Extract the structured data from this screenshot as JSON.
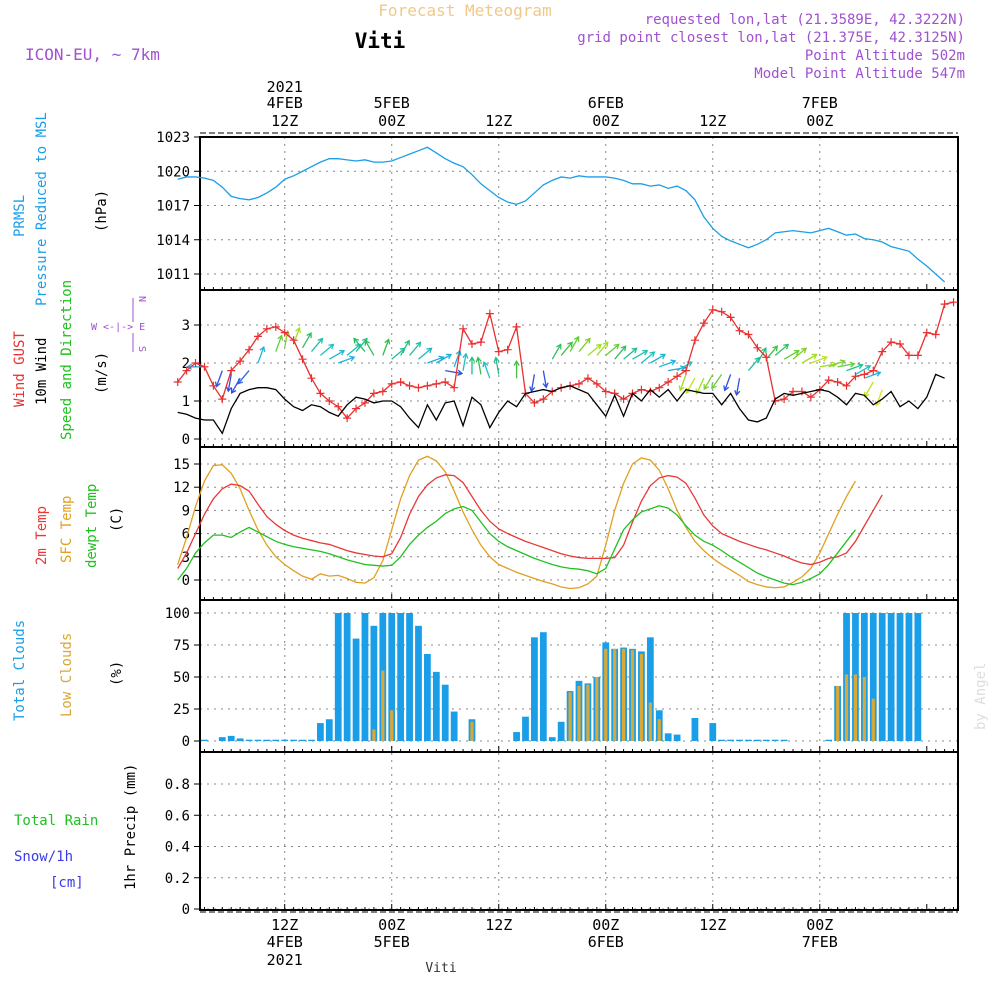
{
  "header": {
    "title": "Forecast Meteogram",
    "station": "Viti",
    "model": "ICON-EU, ~ 7km",
    "requested": "requested lon,lat (21.3589E, 42.3222N)",
    "gridpoint": "grid point closest lon,lat (21.375E, 42.3125N)",
    "point_alt": "Point Altitude 502m",
    "model_alt": "Model Point Altitude 547m",
    "watermark": "by Angel",
    "footer_station": "Viti"
  },
  "colors": {
    "pressure": "#1a9ee8",
    "gust": "#e83030",
    "wind": "#000000",
    "t2m": "#e83838",
    "sfc": "#e0a020",
    "dewpt": "#20c020",
    "total_cloud": "#1a9ee8",
    "low_cloud": "#d8a838",
    "rain": "#20c020",
    "snow": "#3a3ae8",
    "title": "#f0c88a",
    "purple": "#a050d0"
  },
  "time_axis": {
    "top_ticks": [
      {
        "hour": 12,
        "l1": "2021",
        "l2": "4FEB",
        "l3": "12Z"
      },
      {
        "hour": 24,
        "l1": "",
        "l2": "5FEB",
        "l3": "00Z"
      },
      {
        "hour": 36,
        "l1": "",
        "l2": "",
        "l3": "12Z"
      },
      {
        "hour": 48,
        "l1": "",
        "l2": "6FEB",
        "l3": "00Z"
      },
      {
        "hour": 60,
        "l1": "",
        "l2": "",
        "l3": "12Z"
      },
      {
        "hour": 72,
        "l1": "",
        "l2": "7FEB",
        "l3": "00Z"
      }
    ],
    "bottom_ticks": [
      {
        "hour": 12,
        "l1": "12Z",
        "l2": "4FEB",
        "l3": "2021"
      },
      {
        "hour": 24,
        "l1": "00Z",
        "l2": "5FEB",
        "l3": ""
      },
      {
        "hour": 36,
        "l1": "12Z",
        "l2": "",
        "l3": ""
      },
      {
        "hour": 48,
        "l1": "00Z",
        "l2": "6FEB",
        "l3": ""
      },
      {
        "hour": 60,
        "l1": "12Z",
        "l2": "",
        "l3": ""
      },
      {
        "hour": 72,
        "l1": "00Z",
        "l2": "7FEB",
        "l3": ""
      }
    ]
  },
  "panels": {
    "pressure": {
      "label1": "PRMSL",
      "label2": "Pressure Reduced to MSL",
      "unit": "(hPa)",
      "ticks": [
        "1011",
        "1014",
        "1017",
        "1020",
        "1023"
      ]
    },
    "wind": {
      "label_gust": "Wind GUST",
      "label_wind": "10m Wind",
      "label_dir": "Speed and Direction",
      "unit": "(m/s)",
      "ticks": [
        "0",
        "1",
        "2",
        "3"
      ],
      "compass_n": "N",
      "compass_s": "S",
      "compass_w": "W",
      "compass_e": "E",
      "compass_row": "W <-|-> E"
    },
    "temp": {
      "label_t2m": "2m Temp",
      "label_sfc": "SFC Temp",
      "label_dew": "dewpt Temp",
      "unit": "(C)",
      "ticks": [
        "0",
        "3",
        "6",
        "9",
        "12",
        "15"
      ]
    },
    "cloud": {
      "label_total": "Total Clouds",
      "label_low": "Low Clouds",
      "unit": "(%)",
      "ticks": [
        "0",
        "25",
        "50",
        "75",
        "100"
      ]
    },
    "precip": {
      "label_rain": "Total  Rain",
      "label_snow": "Snow/1h",
      "label_cm": "[cm]",
      "unit": "1hr Precip (mm)",
      "ticks": [
        "0",
        "0.2",
        "0.4",
        "0.6",
        "0.8"
      ]
    }
  },
  "chart_data": [
    {
      "type": "line",
      "name": "PRMSL",
      "ylim": [
        1010,
        1023.5
      ],
      "x_hours_start": 0,
      "x_hours_step": 1,
      "values": [
        1019.3,
        1019.5,
        1019.5,
        1019.4,
        1019.2,
        1018.6,
        1017.8,
        1017.6,
        1017.5,
        1017.7,
        1018.1,
        1018.6,
        1019.3,
        1019.6,
        1020.0,
        1020.4,
        1020.8,
        1021.1,
        1021.1,
        1021.0,
        1020.9,
        1021.0,
        1020.8,
        1020.8,
        1020.9,
        1021.2,
        1021.5,
        1021.8,
        1022.1,
        1021.6,
        1021.1,
        1020.7,
        1020.4,
        1019.7,
        1018.9,
        1018.3,
        1017.7,
        1017.3,
        1017.1,
        1017.4,
        1018.1,
        1018.8,
        1019.2,
        1019.5,
        1019.4,
        1019.6,
        1019.5,
        1019.5,
        1019.5,
        1019.4,
        1019.2,
        1018.9,
        1018.9,
        1018.7,
        1018.8,
        1018.5,
        1018.7,
        1018.3,
        1017.5,
        1016.0,
        1015.0,
        1014.3,
        1013.9,
        1013.6,
        1013.3,
        1013.6,
        1014.0,
        1014.6,
        1014.7,
        1014.8,
        1014.7,
        1014.6,
        1014.8,
        1015.0,
        1014.7,
        1014.4,
        1014.5,
        1014.1,
        1014.0,
        1013.8,
        1013.4,
        1013.2,
        1013.0,
        1012.3,
        1011.7,
        1011.0,
        1010.3
      ]
    },
    {
      "type": "line",
      "name": "Wind GUST",
      "ylim": [
        -0.1,
        3.9
      ],
      "x_hours_start": 0,
      "x_hours_step": 1,
      "values": [
        1.5,
        1.8,
        2.0,
        1.9,
        1.4,
        1.05,
        1.8,
        2.05,
        2.35,
        2.7,
        2.9,
        2.95,
        2.8,
        2.6,
        2.1,
        1.6,
        1.2,
        1.0,
        0.85,
        0.55,
        0.8,
        0.95,
        1.2,
        1.25,
        1.45,
        1.5,
        1.4,
        1.35,
        1.4,
        1.45,
        1.5,
        1.35,
        2.9,
        2.5,
        2.55,
        3.3,
        2.3,
        2.35,
        2.95,
        1.2,
        0.95,
        1.05,
        1.25,
        1.35,
        1.4,
        1.45,
        1.6,
        1.45,
        1.25,
        1.2,
        1.05,
        1.2,
        1.3,
        1.25,
        1.35,
        1.5,
        1.65,
        1.8,
        2.6,
        3.05,
        3.4,
        3.35,
        3.2,
        2.85,
        2.75,
        2.4,
        2.15,
        1.0,
        1.05,
        1.25,
        1.25,
        1.1,
        1.3,
        1.55,
        1.5,
        1.4,
        1.65,
        1.7,
        1.8,
        2.3,
        2.55,
        2.5,
        2.2,
        2.2,
        2.8,
        2.75,
        3.55,
        3.6
      ]
    },
    {
      "type": "line",
      "name": "10m Wind",
      "ylim": [
        -0.1,
        3.9
      ],
      "x_hours_start": 0,
      "x_hours_step": 1,
      "values": [
        0.7,
        0.65,
        0.55,
        0.5,
        0.5,
        0.15,
        0.8,
        1.2,
        1.3,
        1.35,
        1.35,
        1.3,
        1.05,
        0.85,
        0.75,
        0.9,
        0.85,
        0.7,
        0.6,
        0.9,
        1.1,
        1.05,
        0.95,
        1.0,
        1.0,
        0.85,
        0.55,
        0.3,
        0.9,
        0.5,
        0.95,
        1.0,
        0.35,
        1.1,
        0.9,
        0.3,
        0.7,
        1.0,
        0.85,
        1.2,
        1.25,
        1.3,
        1.25,
        1.35,
        1.4,
        1.3,
        1.2,
        0.9,
        0.6,
        1.15,
        0.6,
        1.2,
        1.0,
        1.3,
        1.1,
        1.3,
        1.0,
        1.3,
        1.25,
        1.2,
        1.2,
        0.9,
        1.2,
        0.8,
        0.5,
        0.45,
        0.55,
        1.05,
        1.2,
        1.15,
        1.2,
        1.25,
        1.3,
        1.25,
        1.1,
        0.9,
        1.2,
        1.15,
        0.9,
        1.05,
        1.25,
        0.85,
        1.0,
        0.8,
        1.1,
        1.7,
        1.6
      ]
    },
    {
      "type": "line",
      "name": "2m Temp",
      "ylim": [
        -1.5,
        17
      ],
      "x_hours_start": 0,
      "x_hours_step": 1,
      "values": [
        1.5,
        3.5,
        6.0,
        8.5,
        10.5,
        11.8,
        12.4,
        12.2,
        11.5,
        9.8,
        8.2,
        7.2,
        6.4,
        5.8,
        5.4,
        5.1,
        4.8,
        4.6,
        4.2,
        3.8,
        3.5,
        3.3,
        3.1,
        3.0,
        3.4,
        5.5,
        8.5,
        10.8,
        12.3,
        13.2,
        13.6,
        13.5,
        12.6,
        10.8,
        9.0,
        7.6,
        6.6,
        6.0,
        5.5,
        5.0,
        4.6,
        4.2,
        3.8,
        3.4,
        3.1,
        2.9,
        2.8,
        2.8,
        2.8,
        2.9,
        4.5,
        7.5,
        10.2,
        12.2,
        13.2,
        13.5,
        13.3,
        12.5,
        10.6,
        8.4,
        7.0,
        6.0,
        5.5,
        5.0,
        4.6,
        4.2,
        3.9,
        3.5,
        3.1,
        2.6,
        2.2,
        2.0,
        2.3,
        2.8,
        3.0,
        3.5,
        5.0,
        7.0,
        9.0,
        11.0
      ]
    },
    {
      "type": "line",
      "name": "SFC Temp",
      "ylim": [
        -1.5,
        17
      ],
      "x_hours_start": 0,
      "x_hours_step": 1,
      "values": [
        2.0,
        5.5,
        9.5,
        12.8,
        14.8,
        14.9,
        13.8,
        11.8,
        9.0,
        6.5,
        4.5,
        3.0,
        2.0,
        1.2,
        0.5,
        0.1,
        0.8,
        0.5,
        0.6,
        0.2,
        -0.3,
        -0.4,
        0.3,
        2.5,
        6.5,
        10.5,
        13.5,
        15.5,
        16.0,
        15.4,
        14.0,
        11.5,
        8.8,
        6.5,
        4.5,
        3.0,
        2.0,
        1.5,
        1.0,
        0.6,
        0.2,
        -0.2,
        -0.5,
        -0.9,
        -1.1,
        -1.0,
        -0.5,
        0.5,
        4.5,
        9.0,
        12.5,
        15.0,
        15.8,
        15.5,
        14.2,
        11.8,
        9.0,
        6.8,
        5.0,
        3.8,
        2.8,
        2.0,
        1.3,
        0.6,
        -0.2,
        -0.6,
        -0.9,
        -1.0,
        -0.9,
        -0.3,
        0.4,
        1.5,
        3.5,
        6.0,
        8.5,
        10.8,
        12.8
      ]
    },
    {
      "type": "line",
      "name": "dewpt Temp",
      "ylim": [
        -1.5,
        17
      ],
      "x_hours_start": 0,
      "x_hours_step": 1,
      "values": [
        0.0,
        1.5,
        3.5,
        4.8,
        5.8,
        5.8,
        5.5,
        6.2,
        6.8,
        6.2,
        5.6,
        5.0,
        4.6,
        4.3,
        4.1,
        3.9,
        3.7,
        3.4,
        3.0,
        2.6,
        2.3,
        2.0,
        1.9,
        1.8,
        1.9,
        3.0,
        4.6,
        5.8,
        6.8,
        7.6,
        8.6,
        9.2,
        9.5,
        9.0,
        7.5,
        6.0,
        5.0,
        4.3,
        3.8,
        3.3,
        2.8,
        2.4,
        2.0,
        1.7,
        1.5,
        1.4,
        1.2,
        0.8,
        1.5,
        4.0,
        6.5,
        7.8,
        8.8,
        9.2,
        9.6,
        9.3,
        8.4,
        7.0,
        5.8,
        5.0,
        4.5,
        3.8,
        3.0,
        2.3,
        1.6,
        0.9,
        0.4,
        0.0,
        -0.4,
        -0.6,
        -0.3,
        0.2,
        0.8,
        2.0,
        3.5,
        5.0,
        6.5
      ]
    },
    {
      "type": "bar",
      "name": "Total Clouds",
      "ylim": [
        0,
        100
      ],
      "x_hours_start": 0,
      "x_hours_step": 1,
      "values": [
        100,
        100,
        52,
        1,
        0,
        3,
        4,
        2,
        1,
        1,
        1,
        1,
        1,
        1,
        1,
        1,
        14,
        17,
        100,
        100,
        80,
        100,
        90,
        100,
        100,
        100,
        100,
        90,
        68,
        54,
        44,
        23,
        0,
        17,
        0,
        0,
        0,
        0,
        7,
        19,
        81,
        85,
        3,
        15,
        39,
        47,
        45,
        50,
        77,
        72,
        73,
        72,
        70,
        81,
        24,
        6,
        5,
        0,
        18,
        0,
        14,
        1,
        1,
        1,
        1,
        1,
        1,
        1,
        1,
        0,
        0,
        0,
        0,
        1,
        43,
        100,
        100,
        100,
        100,
        100,
        100,
        100,
        100,
        100
      ]
    },
    {
      "type": "bar",
      "name": "Low Clouds",
      "ylim": [
        0,
        100
      ],
      "x_hours_start": 0,
      "x_hours_step": 1,
      "values": [
        72,
        72,
        52,
        0,
        0,
        0,
        0,
        0,
        0,
        0,
        0,
        0,
        0,
        0,
        0,
        0,
        0,
        0,
        0,
        0,
        0,
        0,
        9,
        55,
        24,
        0,
        0,
        0,
        0,
        0,
        0,
        0,
        0,
        15,
        0,
        0,
        0,
        0,
        0,
        0,
        0,
        0,
        0,
        0,
        38,
        43,
        44,
        50,
        72,
        72,
        72,
        71,
        68,
        30,
        17,
        0,
        0,
        0,
        0,
        0,
        0,
        0,
        0,
        0,
        0,
        0,
        0,
        0,
        0,
        0,
        0,
        0,
        0,
        0,
        43,
        52,
        52,
        50,
        33,
        0,
        0,
        0,
        0,
        0
      ]
    },
    {
      "type": "bar",
      "name": "Total Rain",
      "ylim": [
        0,
        0.95
      ],
      "x_hours_start": 0,
      "x_hours_step": 1,
      "values": []
    }
  ],
  "wind_vectors": [
    {
      "h": 0,
      "s": 1.9,
      "d": 90,
      "c": "#2aa8e8"
    },
    {
      "h": 2,
      "s": 1.8,
      "d": 20,
      "c": "#3050e0"
    },
    {
      "h": 3,
      "s": 1.7,
      "d": 10,
      "c": "#3050e0"
    },
    {
      "h": 4,
      "s": 1.6,
      "d": 30,
      "c": "#3050e0"
    },
    {
      "h": 5,
      "s": 1.8,
      "d": 40,
      "c": "#3060e8"
    },
    {
      "h": 6,
      "s": 2.0,
      "d": 200,
      "c": "#2ab0e0"
    },
    {
      "h": 8,
      "s": 2.3,
      "d": 200,
      "c": "#60d040"
    },
    {
      "h": 9,
      "s": 2.4,
      "d": 190,
      "c": "#80d030"
    },
    {
      "h": 10,
      "s": 2.5,
      "d": 200,
      "c": "#a0e020"
    },
    {
      "h": 11,
      "s": 2.4,
      "d": 210,
      "c": "#30c060"
    },
    {
      "h": 12,
      "s": 2.3,
      "d": 220,
      "c": "#20c0a0"
    },
    {
      "h": 13,
      "s": 2.2,
      "d": 230,
      "c": "#20c0c0"
    },
    {
      "h": 14,
      "s": 2.1,
      "d": 240,
      "c": "#20b8d0"
    },
    {
      "h": 15,
      "s": 2.0,
      "d": 250,
      "c": "#20b0e0"
    },
    {
      "h": 16,
      "s": 2.2,
      "d": 230,
      "c": "#20c0b0"
    },
    {
      "h": 17,
      "s": 2.3,
      "d": 220,
      "c": "#20c090"
    },
    {
      "h": 18,
      "s": 2.3,
      "d": 140,
      "c": "#20c060"
    },
    {
      "h": 19,
      "s": 2.2,
      "d": 150,
      "c": "#30c050"
    },
    {
      "h": 20,
      "s": 2.2,
      "d": 200,
      "c": "#30c040"
    },
    {
      "h": 21,
      "s": 2.1,
      "d": 230,
      "c": "#20c0a0"
    },
    {
      "h": 22,
      "s": 2.2,
      "d": 210,
      "c": "#20c080"
    },
    {
      "h": 23,
      "s": 2.2,
      "d": 220,
      "c": "#20c0a0"
    },
    {
      "h": 24,
      "s": 2.1,
      "d": 230,
      "c": "#20b8c0"
    },
    {
      "h": 25,
      "s": 2.0,
      "d": 250,
      "c": "#20a8e0"
    },
    {
      "h": 26,
      "s": 2.0,
      "d": 240,
      "c": "#20b0e0"
    },
    {
      "h": 27,
      "s": 1.8,
      "d": 280,
      "c": "#3050e0"
    },
    {
      "h": 28,
      "s": 1.9,
      "d": 200,
      "c": "#20b0e0"
    },
    {
      "h": 29,
      "s": 1.8,
      "d": 190,
      "c": "#20c0c0"
    },
    {
      "h": 30,
      "s": 1.7,
      "d": 180,
      "c": "#20c080"
    },
    {
      "h": 31,
      "s": 1.7,
      "d": 170,
      "c": "#30c050"
    },
    {
      "h": 32,
      "s": 1.6,
      "d": 160,
      "c": "#20c0c0"
    },
    {
      "h": 33,
      "s": 1.7,
      "d": 170,
      "c": "#20c090"
    },
    {
      "h": 35,
      "s": 1.6,
      "d": 180,
      "c": "#40c040"
    },
    {
      "h": 37,
      "s": 1.7,
      "d": 10,
      "c": "#3050e0"
    },
    {
      "h": 38,
      "s": 1.8,
      "d": 350,
      "c": "#3050e0"
    },
    {
      "h": 39,
      "s": 2.1,
      "d": 210,
      "c": "#30c060"
    },
    {
      "h": 40,
      "s": 2.2,
      "d": 220,
      "c": "#40c040"
    },
    {
      "h": 41,
      "s": 2.3,
      "d": 210,
      "c": "#60d030"
    },
    {
      "h": 42,
      "s": 2.3,
      "d": 220,
      "c": "#80d020"
    },
    {
      "h": 43,
      "s": 2.2,
      "d": 230,
      "c": "#a0e020"
    },
    {
      "h": 44,
      "s": 2.2,
      "d": 220,
      "c": "#a0e020"
    },
    {
      "h": 45,
      "s": 2.2,
      "d": 230,
      "c": "#60d040"
    },
    {
      "h": 46,
      "s": 2.1,
      "d": 220,
      "c": "#30c060"
    },
    {
      "h": 47,
      "s": 2.1,
      "d": 230,
      "c": "#20c090"
    },
    {
      "h": 48,
      "s": 2.1,
      "d": 240,
      "c": "#20c0b0"
    },
    {
      "h": 49,
      "s": 2.0,
      "d": 230,
      "c": "#20c0c0"
    },
    {
      "h": 50,
      "s": 2.0,
      "d": 240,
      "c": "#20b8d0"
    },
    {
      "h": 51,
      "s": 1.9,
      "d": 250,
      "c": "#20b0e0"
    },
    {
      "h": 52,
      "s": 1.8,
      "d": 260,
      "c": "#20a8e0"
    },
    {
      "h": 53,
      "s": 1.8,
      "d": 240,
      "c": "#20c0c0"
    },
    {
      "h": 54,
      "s": 1.7,
      "d": 20,
      "c": "#a0e020"
    },
    {
      "h": 55,
      "s": 1.6,
      "d": 30,
      "c": "#c0e020"
    },
    {
      "h": 56,
      "s": 1.6,
      "d": 25,
      "c": "#a0e020"
    },
    {
      "h": 57,
      "s": 1.7,
      "d": 30,
      "c": "#80d030"
    },
    {
      "h": 58,
      "s": 1.7,
      "d": 35,
      "c": "#60d040"
    },
    {
      "h": 59,
      "s": 1.7,
      "d": 20,
      "c": "#3050e0"
    },
    {
      "h": 60,
      "s": 1.6,
      "d": 10,
      "c": "#3050e0"
    },
    {
      "h": 61,
      "s": 1.8,
      "d": 220,
      "c": "#20c0a0"
    },
    {
      "h": 62,
      "s": 2.0,
      "d": 210,
      "c": "#20c080"
    },
    {
      "h": 63,
      "s": 2.1,
      "d": 220,
      "c": "#40c040"
    },
    {
      "h": 64,
      "s": 2.2,
      "d": 230,
      "c": "#30c060"
    },
    {
      "h": 65,
      "s": 2.1,
      "d": 240,
      "c": "#60d030"
    },
    {
      "h": 66,
      "s": 2.1,
      "d": 230,
      "c": "#80d020"
    },
    {
      "h": 67,
      "s": 2.0,
      "d": 240,
      "c": "#a0e020"
    },
    {
      "h": 68,
      "s": 2.0,
      "d": 250,
      "c": "#c0e020"
    },
    {
      "h": 69,
      "s": 1.9,
      "d": 260,
      "c": "#a0e020"
    },
    {
      "h": 70,
      "s": 1.9,
      "d": 250,
      "c": "#80d030"
    },
    {
      "h": 71,
      "s": 1.9,
      "d": 260,
      "c": "#60d040"
    },
    {
      "h": 72,
      "s": 1.8,
      "d": 250,
      "c": "#20c090"
    },
    {
      "h": 73,
      "s": 1.7,
      "d": 240,
      "c": "#20c0c0"
    },
    {
      "h": 74,
      "s": 1.6,
      "d": 250,
      "c": "#20b0e0"
    },
    {
      "h": 75,
      "s": 1.5,
      "d": 30,
      "c": "#c0e020"
    },
    {
      "h": 76,
      "s": 1.3,
      "d": 20,
      "c": "#e0e020"
    }
  ]
}
